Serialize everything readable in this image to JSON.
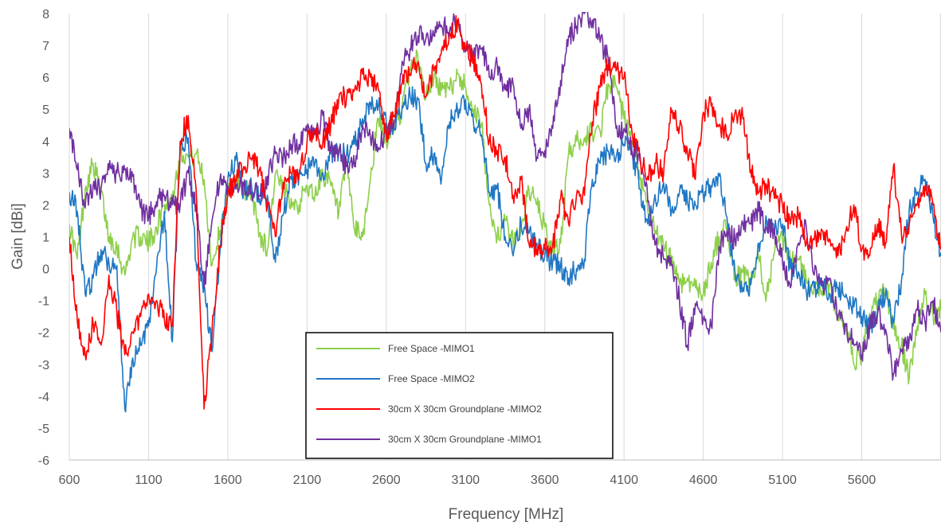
{
  "chart_data": {
    "type": "line",
    "title": "",
    "xlabel": "Frequency [MHz]",
    "ylabel": "Gain [dBi]",
    "xlim": [
      600,
      6100
    ],
    "ylim": [
      -6,
      8
    ],
    "x_ticks": [
      600,
      1100,
      1600,
      2100,
      2600,
      3100,
      3600,
      4100,
      4600,
      5100,
      5600
    ],
    "y_ticks": [
      -6,
      -5,
      -4,
      -3,
      -2,
      -1,
      0,
      1,
      2,
      3,
      4,
      5,
      6,
      7,
      8
    ],
    "grid": "vertical",
    "legend_position": "bottom-center",
    "series": [
      {
        "name": "Free Space -MIMO1",
        "color": "#8DCF4A",
        "x": [
          600,
          650,
          700,
          750,
          800,
          850,
          900,
          950,
          1000,
          1050,
          1100,
          1150,
          1200,
          1250,
          1300,
          1350,
          1400,
          1450,
          1500,
          1550,
          1600,
          1650,
          1700,
          1750,
          1800,
          1850,
          1900,
          1950,
          2000,
          2050,
          2100,
          2150,
          2200,
          2250,
          2300,
          2350,
          2400,
          2450,
          2500,
          2550,
          2600,
          2650,
          2700,
          2750,
          2800,
          2850,
          2900,
          2950,
          3000,
          3050,
          3100,
          3150,
          3200,
          3250,
          3300,
          3350,
          3400,
          3450,
          3500,
          3550,
          3600,
          3650,
          3700,
          3750,
          3800,
          3850,
          3900,
          3950,
          4000,
          4050,
          4100,
          4150,
          4200,
          4250,
          4300,
          4350,
          4400,
          4450,
          4500,
          4550,
          4600,
          4650,
          4700,
          4750,
          4800,
          4850,
          4900,
          4950,
          5000,
          5050,
          5100,
          5150,
          5200,
          5250,
          5300,
          5350,
          5400,
          5450,
          5500,
          5550,
          5600,
          5650,
          5700,
          5750,
          5800,
          5850,
          5900,
          5950,
          6000,
          6050,
          6100
        ],
        "y": [
          1.4,
          0.3,
          2.5,
          3.3,
          2.4,
          1.0,
          0.7,
          -0.2,
          1.0,
          1.0,
          0.8,
          1.3,
          2.0,
          2.2,
          3.7,
          3.5,
          3.6,
          2.8,
          0.1,
          1.2,
          2.3,
          2.9,
          2.5,
          2.4,
          1.1,
          0.6,
          3.0,
          2.4,
          2.2,
          2.0,
          2.6,
          2.3,
          3.0,
          2.6,
          1.7,
          3.3,
          1.2,
          1.0,
          2.8,
          4.7,
          4.0,
          4.5,
          5.0,
          6.3,
          6.6,
          5.4,
          6.0,
          5.6,
          5.6,
          6.1,
          5.7,
          5.0,
          4.5,
          2.0,
          1.0,
          1.5,
          0.8,
          1.3,
          2.5,
          2.0,
          1.3,
          0.5,
          0.8,
          3.6,
          4.0,
          4.1,
          4.3,
          4.3,
          5.8,
          5.7,
          4.7,
          4.0,
          2.8,
          1.8,
          1.2,
          0.6,
          0.4,
          -0.5,
          -0.3,
          -0.6,
          -0.8,
          0.2,
          1.0,
          1.3,
          -0.3,
          -0.1,
          -0.5,
          0.3,
          -0.8,
          0.5,
          0.9,
          0.2,
          0.3,
          -0.4,
          -0.5,
          -0.7,
          -0.5,
          -1.5,
          -1.8,
          -3.0,
          -2.7,
          -1.4,
          -1.0,
          -0.6,
          -1.9,
          -2.4,
          -3.4,
          -1.8,
          -0.8,
          -1.5,
          -1.3
        ]
      },
      {
        "name": "Free Space -MIMO2",
        "color": "#1F77C4",
        "x": [
          600,
          650,
          700,
          750,
          800,
          850,
          900,
          950,
          1000,
          1050,
          1100,
          1150,
          1200,
          1250,
          1300,
          1350,
          1400,
          1450,
          1500,
          1550,
          1600,
          1650,
          1700,
          1750,
          1800,
          1850,
          1900,
          1950,
          2000,
          2050,
          2100,
          2150,
          2200,
          2250,
          2300,
          2350,
          2400,
          2450,
          2500,
          2550,
          2600,
          2650,
          2700,
          2750,
          2800,
          2850,
          2900,
          2950,
          3000,
          3050,
          3100,
          3150,
          3200,
          3250,
          3300,
          3350,
          3400,
          3450,
          3500,
          3550,
          3600,
          3650,
          3700,
          3750,
          3800,
          3850,
          3900,
          3950,
          4000,
          4050,
          4100,
          4150,
          4200,
          4250,
          4300,
          4350,
          4400,
          4450,
          4500,
          4550,
          4600,
          4650,
          4700,
          4750,
          4800,
          4850,
          4900,
          4950,
          5000,
          5050,
          5100,
          5150,
          5200,
          5250,
          5300,
          5350,
          5400,
          5450,
          5500,
          5550,
          5600,
          5650,
          5700,
          5750,
          5800,
          5850,
          5900,
          5950,
          6000,
          6050,
          6100
        ],
        "y": [
          2.4,
          1.8,
          -0.8,
          -0.3,
          0.6,
          0.2,
          0.1,
          -4.4,
          -2.8,
          -2.4,
          -1.8,
          0.0,
          1.8,
          -2.3,
          3.9,
          4.1,
          0.2,
          -0.5,
          -2.6,
          0.5,
          2.8,
          3.4,
          2.4,
          2.6,
          2.2,
          2.3,
          0.2,
          1.7,
          2.8,
          2.9,
          3.1,
          3.3,
          3.0,
          3.6,
          3.6,
          3.6,
          3.9,
          4.7,
          5.2,
          5.1,
          4.6,
          4.4,
          5.1,
          5.4,
          5.3,
          3.3,
          3.6,
          2.9,
          4.6,
          4.9,
          5.3,
          4.6,
          4.2,
          2.4,
          2.5,
          1.0,
          0.4,
          1.4,
          1.1,
          0.8,
          0.4,
          0.2,
          0.1,
          -0.3,
          0.0,
          0.3,
          2.8,
          3.3,
          3.7,
          3.5,
          3.9,
          3.7,
          2.5,
          1.4,
          2.1,
          2.7,
          1.8,
          2.4,
          2.1,
          2.0,
          2.3,
          2.6,
          2.9,
          1.6,
          -0.1,
          -0.6,
          -0.5,
          0.8,
          1.5,
          1.2,
          1.4,
          0.0,
          -0.1,
          -0.7,
          -0.6,
          -0.5,
          -0.8,
          -0.6,
          -0.8,
          -1.2,
          -1.5,
          -1.9,
          -1.3,
          -0.8,
          -1.7,
          -0.4,
          1.9,
          2.4,
          2.8,
          1.6,
          0.5
        ]
      },
      {
        "name": "30cm X 30cm Groundplane -MIMO2",
        "color": "#FF0000",
        "x": [
          600,
          650,
          700,
          750,
          800,
          850,
          900,
          950,
          1000,
          1050,
          1100,
          1150,
          1200,
          1250,
          1300,
          1350,
          1400,
          1450,
          1500,
          1550,
          1600,
          1650,
          1700,
          1750,
          1800,
          1850,
          1900,
          1950,
          2000,
          2050,
          2100,
          2150,
          2200,
          2250,
          2300,
          2350,
          2400,
          2450,
          2500,
          2550,
          2600,
          2650,
          2700,
          2750,
          2800,
          2850,
          2900,
          2950,
          3000,
          3050,
          3100,
          3150,
          3200,
          3250,
          3300,
          3350,
          3400,
          3450,
          3500,
          3550,
          3600,
          3650,
          3700,
          3750,
          3800,
          3850,
          3900,
          3950,
          4000,
          4050,
          4100,
          4150,
          4200,
          4250,
          4300,
          4350,
          4400,
          4450,
          4500,
          4550,
          4600,
          4650,
          4700,
          4750,
          4800,
          4850,
          4900,
          4950,
          5000,
          5050,
          5100,
          5150,
          5200,
          5250,
          5300,
          5350,
          5400,
          5450,
          5500,
          5550,
          5600,
          5650,
          5700,
          5750,
          5800,
          5850,
          5900,
          5950,
          6000,
          6050,
          6100
        ],
        "y": [
          1.0,
          -1.6,
          -2.7,
          -1.7,
          -2.4,
          -0.2,
          -1.4,
          -2.7,
          -2.0,
          -1.5,
          -0.8,
          -1.0,
          -1.6,
          -1.8,
          4.0,
          4.8,
          2.5,
          -4.4,
          -2.0,
          0.7,
          2.4,
          2.8,
          3.2,
          3.4,
          3.1,
          2.0,
          1.0,
          2.7,
          3.0,
          3.0,
          4.0,
          4.3,
          4.0,
          4.5,
          5.3,
          5.4,
          5.6,
          6.1,
          6.0,
          5.6,
          4.2,
          4.8,
          5.8,
          6.1,
          6.5,
          5.4,
          6.2,
          6.9,
          7.4,
          7.7,
          6.8,
          6.6,
          5.8,
          4.0,
          3.7,
          3.5,
          2.3,
          2.8,
          0.8,
          0.6,
          0.6,
          0.7,
          2.2,
          1.4,
          2.3,
          2.3,
          4.6,
          5.7,
          6.4,
          6.2,
          6.0,
          4.3,
          3.4,
          2.9,
          3.3,
          3.0,
          4.9,
          4.4,
          3.7,
          2.8,
          4.9,
          5.1,
          4.5,
          4.2,
          4.9,
          4.7,
          3.1,
          2.4,
          2.6,
          2.2,
          2.0,
          1.4,
          1.7,
          0.8,
          0.9,
          1.2,
          0.9,
          0.4,
          1.2,
          2.0,
          0.6,
          0.4,
          1.4,
          0.8,
          3.2,
          1.1,
          1.4,
          2.0,
          2.6,
          2.0,
          0.6
        ]
      },
      {
        "name": "30cm X 30cm Groundplane -MIMO1",
        "color": "#7030A0",
        "x": [
          600,
          650,
          700,
          750,
          800,
          850,
          900,
          950,
          1000,
          1050,
          1100,
          1150,
          1200,
          1250,
          1300,
          1350,
          1400,
          1450,
          1500,
          1550,
          1600,
          1650,
          1700,
          1750,
          1800,
          1850,
          1900,
          1950,
          2000,
          2050,
          2100,
          2150,
          2200,
          2250,
          2300,
          2350,
          2400,
          2450,
          2500,
          2550,
          2600,
          2650,
          2700,
          2750,
          2800,
          2850,
          2900,
          2950,
          3000,
          3050,
          3100,
          3150,
          3200,
          3250,
          3300,
          3350,
          3400,
          3450,
          3500,
          3550,
          3600,
          3650,
          3700,
          3750,
          3800,
          3850,
          3900,
          3950,
          4000,
          4050,
          4100,
          4150,
          4200,
          4250,
          4300,
          4350,
          4400,
          4450,
          4500,
          4550,
          4600,
          4650,
          4700,
          4750,
          4800,
          4850,
          4900,
          4950,
          5000,
          5050,
          5100,
          5150,
          5200,
          5250,
          5300,
          5350,
          5400,
          5450,
          5500,
          5550,
          5600,
          5650,
          5700,
          5750,
          5800,
          5850,
          5900,
          5950,
          6000,
          6050,
          6100
        ],
        "y": [
          4.4,
          3.1,
          1.9,
          2.6,
          2.5,
          3.1,
          3.0,
          3.1,
          2.9,
          1.9,
          1.6,
          2.1,
          2.3,
          2.0,
          2.0,
          3.0,
          2.0,
          -0.6,
          1.5,
          2.8,
          2.6,
          2.5,
          2.6,
          2.4,
          2.3,
          2.9,
          3.6,
          3.5,
          3.9,
          3.9,
          4.3,
          4.2,
          4.8,
          3.7,
          3.7,
          3.2,
          3.2,
          4.5,
          4.1,
          3.8,
          4.3,
          4.6,
          6.5,
          6.9,
          7.3,
          7.2,
          7.3,
          7.6,
          7.5,
          7.8,
          6.9,
          6.6,
          6.9,
          6.0,
          6.4,
          5.6,
          5.8,
          4.4,
          5.0,
          3.5,
          3.7,
          4.4,
          5.9,
          7.3,
          7.6,
          8.0,
          7.8,
          7.1,
          6.6,
          4.4,
          4.4,
          3.7,
          3.6,
          2.1,
          0.8,
          0.3,
          0.1,
          -1.0,
          -2.4,
          -1.1,
          -1.6,
          -1.8,
          0.7,
          1.2,
          0.9,
          1.4,
          1.4,
          1.8,
          1.3,
          1.2,
          0.2,
          -0.6,
          0.8,
          1.3,
          -0.2,
          -0.5,
          -0.3,
          -1.5,
          -1.8,
          -2.4,
          -2.7,
          -1.8,
          -1.4,
          -1.9,
          -3.3,
          -2.6,
          -2.2,
          -1.3,
          -1.7,
          -1.0,
          -2.0
        ]
      }
    ]
  }
}
